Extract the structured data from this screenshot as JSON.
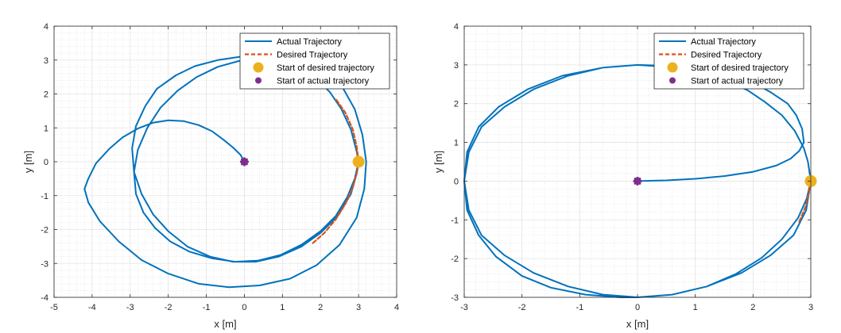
{
  "colors": {
    "actual": "#0072BD",
    "desired": "#D95319",
    "start_desired": "#EDB120",
    "start_actual": "#7E2F8E",
    "axis": "#262626",
    "grid": "#dcdcdc"
  },
  "chart_data": [
    {
      "type": "line",
      "xlabel": "x [m]",
      "ylabel": "y [m]",
      "xlim": [
        -5,
        4
      ],
      "ylim": [
        -4,
        4
      ],
      "xticks": [
        -5,
        -4,
        -3,
        -2,
        -1,
        0,
        1,
        2,
        3,
        4
      ],
      "yticks": [
        -4,
        -3,
        -2,
        -1,
        0,
        1,
        2,
        3,
        4
      ],
      "xtick_labels": [
        "-5",
        "-4",
        "-3",
        "-2",
        "-1",
        "0",
        "1",
        "2",
        "3",
        "4"
      ],
      "ytick_labels": [
        "-4",
        "-3",
        "-2",
        "-1",
        "0",
        "1",
        "2",
        "3",
        "4"
      ],
      "grid": true,
      "minor_grid": true,
      "legend_position": "top-right",
      "series": [
        {
          "name": "Actual Trajectory",
          "style": "solid",
          "x": [
            0,
            -0.1,
            -0.3,
            -0.55,
            -0.85,
            -1.2,
            -1.6,
            -2.0,
            -2.4,
            -2.8,
            -3.2,
            -3.55,
            -3.9,
            -4.1,
            -4.2,
            -4.1,
            -3.8,
            -3.3,
            -2.7,
            -2.0,
            -1.2,
            -0.4,
            0.4,
            1.2,
            1.9,
            2.5,
            2.95,
            3.15,
            3.2,
            3.1,
            2.9,
            2.6,
            2.2,
            1.7,
            1.1,
            0.5,
            -0.1,
            -0.7,
            -1.3,
            -1.8,
            -2.3,
            -2.6,
            -2.85,
            -2.95,
            -2.9,
            -2.7,
            -2.4,
            -2.0,
            -1.5,
            -0.9,
            -0.3,
            0.3,
            0.9,
            1.5,
            2.0,
            2.45,
            2.8,
            2.95,
            3.0,
            2.95,
            2.8,
            2.55,
            2.25,
            1.9,
            1.45,
            0.95,
            0.4,
            -0.15,
            -0.7,
            -1.25,
            -1.75,
            -2.2,
            -2.55,
            -2.8,
            -2.9,
            -2.85,
            -2.65,
            -2.35,
            -1.95,
            -1.45,
            -0.85,
            -0.25,
            0.35,
            0.95,
            1.5,
            2.0,
            2.4,
            2.7,
            2.9,
            3.0
          ],
          "y": [
            0,
            0.2,
            0.42,
            0.65,
            0.9,
            1.08,
            1.2,
            1.22,
            1.15,
            0.98,
            0.72,
            0.38,
            -0.05,
            -0.5,
            -0.8,
            -1.2,
            -1.75,
            -2.35,
            -2.9,
            -3.3,
            -3.6,
            -3.7,
            -3.65,
            -3.45,
            -3.05,
            -2.45,
            -1.65,
            -0.8,
            0.0,
            0.8,
            1.55,
            2.15,
            2.6,
            2.95,
            3.12,
            3.15,
            3.1,
            3.0,
            2.82,
            2.55,
            2.15,
            1.65,
            1.05,
            0.4,
            -0.3,
            -0.95,
            -1.55,
            -2.05,
            -2.5,
            -2.8,
            -2.95,
            -2.95,
            -2.8,
            -2.5,
            -2.1,
            -1.6,
            -0.95,
            -0.35,
            0.0,
            0.3,
            0.95,
            1.55,
            2.05,
            2.45,
            2.75,
            2.95,
            3.02,
            2.97,
            2.8,
            2.5,
            2.1,
            1.6,
            1.0,
            0.35,
            -0.3,
            -0.95,
            -1.5,
            -1.95,
            -2.35,
            -2.65,
            -2.85,
            -2.95,
            -2.92,
            -2.75,
            -2.45,
            -2.05,
            -1.6,
            -1.05,
            -0.5,
            0.0
          ]
        },
        {
          "name": "Desired Trajectory",
          "style": "dashed",
          "x": [
            1.8,
            2.1,
            2.4,
            2.65,
            2.85,
            2.95,
            3.0,
            2.95,
            2.85,
            2.65,
            2.4
          ],
          "y": [
            -2.4,
            -2.1,
            -1.7,
            -1.25,
            -0.75,
            -0.35,
            0.0,
            0.45,
            0.95,
            1.45,
            1.85
          ]
        }
      ],
      "markers": [
        {
          "name": "Start of desired trajectory",
          "x": 3,
          "y": 0
        },
        {
          "name": "Start of actual trajectory",
          "x": 0,
          "y": 0
        }
      ]
    },
    {
      "type": "line",
      "xlabel": "x [m]",
      "ylabel": "y [m]",
      "xlim": [
        -3,
        3
      ],
      "ylim": [
        -3,
        4
      ],
      "xticks": [
        -3,
        -2,
        -1,
        0,
        1,
        2,
        3
      ],
      "yticks": [
        -3,
        -2,
        -1,
        0,
        1,
        2,
        3,
        4
      ],
      "xtick_labels": [
        "-3",
        "-2",
        "-1",
        "0",
        "1",
        "2",
        "3"
      ],
      "ytick_labels": [
        "-3",
        "-2",
        "-1",
        "0",
        "1",
        "2",
        "3",
        "4"
      ],
      "grid": true,
      "minor_grid": true,
      "legend_position": "top-right",
      "series": [
        {
          "name": "Actual Trajectory",
          "style": "solid",
          "x": [
            0,
            0.5,
            1.0,
            1.5,
            2.0,
            2.4,
            2.65,
            2.8,
            2.88,
            2.85,
            2.75,
            2.6,
            2.3,
            2.0,
            1.55,
            1.0,
            0.4,
            0.0,
            -0.6,
            -1.3,
            -1.9,
            -2.4,
            -2.75,
            -2.95,
            -3.0,
            -2.95,
            -2.75,
            -2.45,
            -2.0,
            -1.5,
            -0.9,
            -0.3,
            0.0,
            0.6,
            1.2,
            1.7,
            2.15,
            2.5,
            2.78,
            2.93,
            3.0,
            2.95,
            2.88,
            2.72,
            2.5,
            2.2,
            1.9,
            1.5,
            1.0,
            0.5,
            0.0,
            -0.6,
            -1.2,
            -1.8,
            -2.3,
            -2.7,
            -2.92,
            -3.0,
            -2.92,
            -2.7,
            -2.3,
            -1.8,
            -1.2,
            -0.6,
            0.0,
            0.6,
            1.2,
            1.8,
            2.3,
            2.7,
            2.92,
            3.0
          ],
          "y": [
            0,
            0.02,
            0.06,
            0.13,
            0.24,
            0.4,
            0.58,
            0.78,
            1.0,
            1.35,
            1.7,
            2.0,
            2.3,
            2.55,
            2.75,
            2.9,
            2.98,
            3.0,
            2.93,
            2.72,
            2.37,
            1.92,
            1.4,
            0.75,
            0.0,
            -0.75,
            -1.4,
            -1.95,
            -2.45,
            -2.75,
            -2.93,
            -3.0,
            -3.0,
            -2.93,
            -2.72,
            -2.4,
            -1.98,
            -1.5,
            -0.95,
            -0.45,
            0.0,
            0.5,
            0.85,
            1.3,
            1.7,
            2.05,
            2.35,
            2.6,
            2.82,
            2.95,
            3.0,
            2.93,
            2.72,
            2.37,
            1.92,
            1.4,
            0.75,
            0.0,
            -0.75,
            -1.4,
            -1.92,
            -2.37,
            -2.72,
            -2.93,
            -3.0,
            -2.93,
            -2.72,
            -2.37,
            -1.92,
            -1.4,
            -0.75,
            0.0
          ]
        },
        {
          "name": "Desired Trajectory",
          "style": "dashed",
          "x": [
            2.8,
            2.9,
            2.96,
            3.0
          ],
          "y": [
            -1.05,
            -0.7,
            -0.35,
            0.0
          ]
        }
      ],
      "markers": [
        {
          "name": "Start of desired trajectory",
          "x": 3,
          "y": 0
        },
        {
          "name": "Start of actual trajectory",
          "x": 0,
          "y": 0
        }
      ]
    }
  ]
}
